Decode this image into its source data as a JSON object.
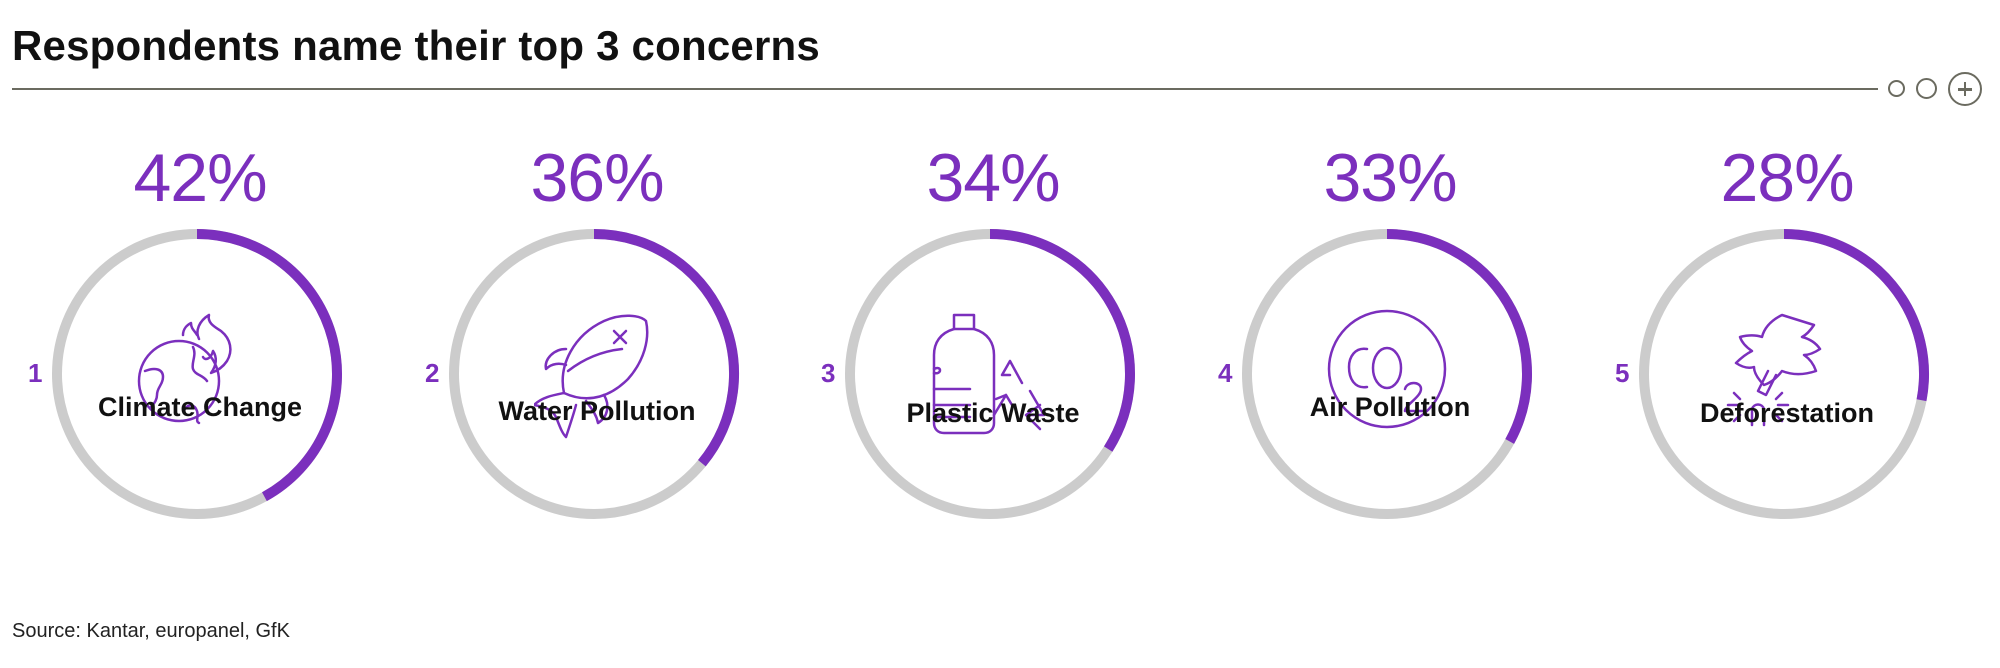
{
  "header": {
    "title": "Respondents name their top 3 concerns"
  },
  "footer": {
    "source": "Source: Kantar, europanel, GfK"
  },
  "colors": {
    "accent": "#7b2fbd",
    "track": "#cccccc",
    "rule": "#6b6b60"
  },
  "controls": [
    "circle-icon",
    "circle-icon",
    "plus-circle-icon"
  ],
  "chart_data": {
    "type": "donut-progress",
    "title": "Respondents name their top 3 concerns",
    "unit": "%",
    "categories": [
      "Climate Change",
      "Water Pollution",
      "Plastic Waste",
      "Air Pollution",
      "Deforestation"
    ],
    "ranks": [
      "1",
      "2",
      "3",
      "4",
      "5"
    ],
    "values": [
      42,
      36,
      34,
      33,
      28
    ],
    "labels": [
      "42%",
      "36%",
      "34%",
      "33%",
      "28%"
    ],
    "icons": [
      "globe-flame-icon",
      "fish-icon",
      "plastic-bottle-recycle-icon",
      "co2-icon",
      "tree-cut-icon"
    ]
  }
}
